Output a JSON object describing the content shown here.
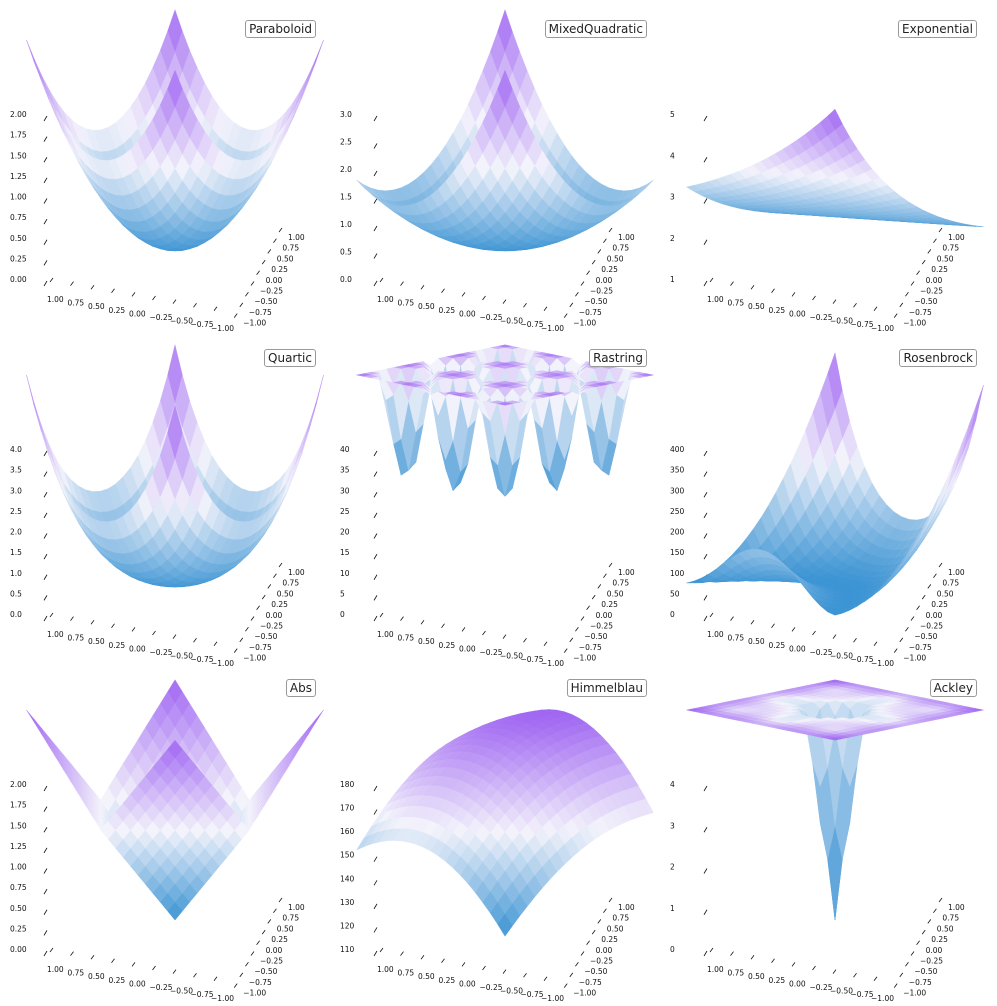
{
  "colors": {
    "low": "#3a93d3",
    "mid": "#f3f3fb",
    "high": "#a066f2"
  },
  "chart_data": [
    {
      "type": "surface3d",
      "title": "Paraboloid",
      "zticks": [
        "0.00",
        "0.25",
        "0.50",
        "0.75",
        "1.00",
        "1.25",
        "1.50",
        "1.75",
        "2.00"
      ],
      "xticks": [
        "1.00",
        "0.75",
        "0.50",
        "0.25",
        "0.00",
        "−0.25",
        "−0.50",
        "−0.75",
        "−1.00"
      ],
      "yticks": [
        "1.00",
        "0.75",
        "0.50",
        "0.25",
        "0.00",
        "−0.25",
        "−0.50",
        "−0.75",
        "−1.00"
      ],
      "x_range": [
        -1,
        1
      ],
      "y_range": [
        -1,
        1
      ],
      "z_range": [
        0,
        2
      ],
      "function": "x^2 + y^2"
    },
    {
      "type": "surface3d",
      "title": "MixedQuadratic",
      "zticks": [
        "0.0",
        "0.5",
        "1.0",
        "1.5",
        "2.0",
        "2.5",
        "3.0"
      ],
      "xticks": [
        "1.00",
        "0.75",
        "0.50",
        "0.25",
        "0.00",
        "−0.25",
        "−0.50",
        "−0.75",
        "−1.00"
      ],
      "yticks": [
        "1.00",
        "0.75",
        "0.50",
        "0.25",
        "0.00",
        "−0.25",
        "−0.50",
        "−0.75",
        "−1.00"
      ],
      "x_range": [
        -1,
        1
      ],
      "y_range": [
        -1,
        1
      ],
      "z_range": [
        0,
        3
      ],
      "function": "x^2 + x*y + y^2"
    },
    {
      "type": "surface3d",
      "title": "Exponential",
      "zticks": [
        "1",
        "2",
        "3",
        "4",
        "5"
      ],
      "xticks": [
        "1.00",
        "0.75",
        "0.50",
        "0.25",
        "0.00",
        "−0.25",
        "−0.50",
        "−0.75",
        "−1.00"
      ],
      "yticks": [
        "1.00",
        "0.75",
        "0.50",
        "0.25",
        "0.00",
        "−0.25",
        "−0.50",
        "−0.75",
        "−1.00"
      ],
      "x_range": [
        -1,
        1
      ],
      "y_range": [
        -1,
        1
      ],
      "z_range": [
        0,
        5.5
      ],
      "function": "exp(0.5x + y)"
    },
    {
      "type": "surface3d",
      "title": "Quartic",
      "zticks": [
        "0.0",
        "0.5",
        "1.0",
        "1.5",
        "2.0",
        "2.5",
        "3.0",
        "3.5",
        "4.0"
      ],
      "xticks": [
        "1.00",
        "0.75",
        "0.50",
        "0.25",
        "0.00",
        "−0.25",
        "−0.50",
        "−0.75",
        "−1.00"
      ],
      "yticks": [
        "1.00",
        "0.75",
        "0.50",
        "0.25",
        "0.00",
        "−0.25",
        "−0.50",
        "−0.75",
        "−1.00"
      ],
      "x_range": [
        -1,
        1
      ],
      "y_range": [
        -1,
        1
      ],
      "z_range": [
        0,
        4
      ],
      "function": "quartic bowl"
    },
    {
      "type": "surface3d",
      "title": "Rastring",
      "zticks": [
        "0",
        "5",
        "10",
        "15",
        "20",
        "25",
        "30",
        "35",
        "40"
      ],
      "xticks": [
        "1.00",
        "0.75",
        "0.50",
        "0.25",
        "0.00",
        "−0.25",
        "−0.50",
        "−0.75",
        "−1.00"
      ],
      "yticks": [
        "1.00",
        "0.75",
        "0.50",
        "0.25",
        "0.00",
        "−0.25",
        "−0.50",
        "−0.75",
        "−1.00"
      ],
      "x_range": [
        -1,
        1
      ],
      "y_range": [
        -1,
        1
      ],
      "z_range": [
        0,
        42
      ],
      "function": "Rastrigin"
    },
    {
      "type": "surface3d",
      "title": "Rosenbrock",
      "zticks": [
        "0",
        "50",
        "100",
        "150",
        "200",
        "250",
        "300",
        "350",
        "400"
      ],
      "xticks": [
        "1.00",
        "0.75",
        "0.50",
        "0.25",
        "0.00",
        "−0.25",
        "−0.50",
        "−0.75",
        "−1.00"
      ],
      "yticks": [
        "1.00",
        "0.75",
        "0.50",
        "0.25",
        "0.00",
        "−0.25",
        "−0.50",
        "−0.75",
        "−1.00"
      ],
      "x_range": [
        -1,
        1
      ],
      "y_range": [
        -1,
        1
      ],
      "z_range": [
        0,
        420
      ],
      "function": "Rosenbrock"
    },
    {
      "type": "surface3d",
      "title": "Abs",
      "zticks": [
        "0.00",
        "0.25",
        "0.50",
        "0.75",
        "1.00",
        "1.25",
        "1.50",
        "1.75",
        "2.00"
      ],
      "xticks": [
        "1.00",
        "0.75",
        "0.50",
        "0.25",
        "0.00",
        "−0.25",
        "−0.50",
        "−0.75",
        "−1.00"
      ],
      "yticks": [
        "1.00",
        "0.75",
        "0.50",
        "0.25",
        "0.00",
        "−0.25",
        "−0.50",
        "−0.75",
        "−1.00"
      ],
      "x_range": [
        -1,
        1
      ],
      "y_range": [
        -1,
        1
      ],
      "z_range": [
        0,
        2
      ],
      "function": "|x| + |y|"
    },
    {
      "type": "surface3d",
      "title": "Himmelblau",
      "zticks": [
        "110",
        "120",
        "130",
        "140",
        "150",
        "160",
        "170",
        "180"
      ],
      "xticks": [
        "1.00",
        "0.75",
        "0.50",
        "0.25",
        "0.00",
        "−0.25",
        "−0.50",
        "−0.75",
        "−1.00"
      ],
      "yticks": [
        "1.00",
        "0.75",
        "0.50",
        "0.25",
        "0.00",
        "−0.25",
        "−0.50",
        "−0.75",
        "−1.00"
      ],
      "x_range": [
        -1,
        1
      ],
      "y_range": [
        -1,
        1
      ],
      "z_range": [
        100,
        190
      ],
      "function": "Himmelblau"
    },
    {
      "type": "surface3d",
      "title": "Ackley",
      "zticks": [
        "0",
        "1",
        "2",
        "3",
        "4"
      ],
      "xticks": [
        "1.00",
        "0.75",
        "0.50",
        "0.25",
        "0.00",
        "−0.25",
        "−0.50",
        "−0.75",
        "−1.00"
      ],
      "yticks": [
        "1.00",
        "0.75",
        "0.50",
        "0.25",
        "0.00",
        "−0.25",
        "−0.50",
        "−0.75",
        "−1.00"
      ],
      "x_range": [
        -1,
        1
      ],
      "y_range": [
        -1,
        1
      ],
      "z_range": [
        0,
        4.5
      ],
      "function": "Ackley"
    }
  ]
}
